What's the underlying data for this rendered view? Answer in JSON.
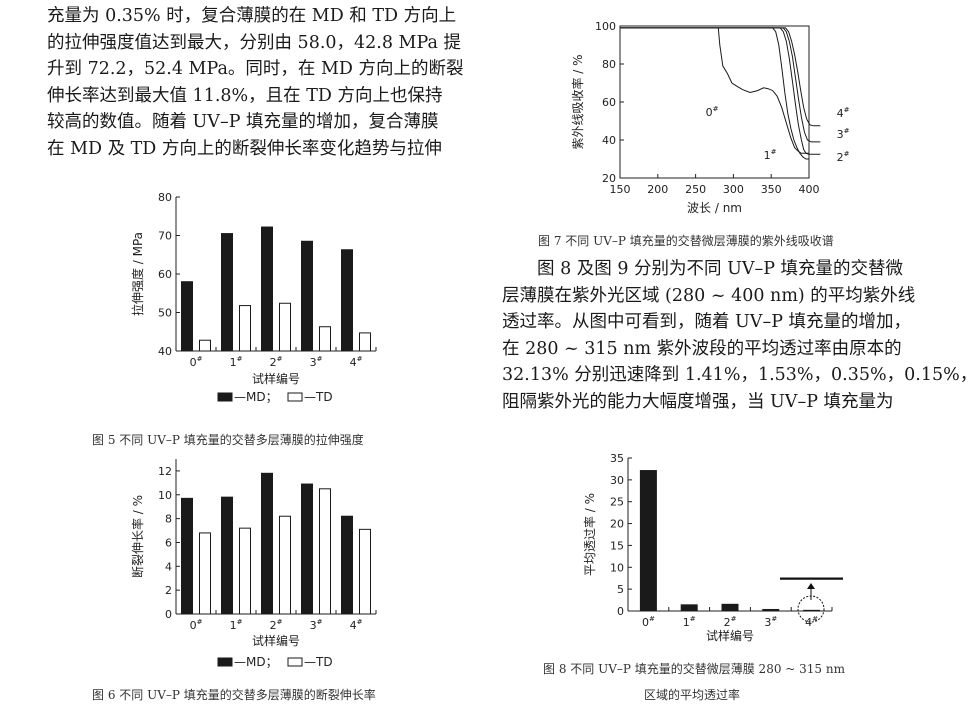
{
  "left_paragraph": [
    "充量为 0.35% 时，复合薄膜的在 MD 和 TD 方向上",
    "的拉伸强度值达到最大，分别由 58.0，42.8 MPa 提",
    "升到 72.2，52.4 MPa。同时，在 MD 方向上的断裂",
    "伸长率达到最大值 11.8%，且在 TD 方向上也保持",
    "较高的数值。随着 UV–P 填充量的增加，复合薄膜",
    "在 MD 及 TD 方向上的断裂伸长率变化趋势与拉伸"
  ],
  "right_paragraph": [
    "图 8 及图 9 分别为不同 UV–P 填充量的交替微",
    "层薄膜在紫外光区域 (280 ~ 400  nm) 的平均紫外线",
    "透过率。从图中可看到，随着 UV–P 填充量的增加，",
    "在 280 ~ 315  nm 紫外波段的平均透过率由原本的",
    "32.13% 分别迅速降到 1.41%，1.53%，0.35%，0.15%，",
    "阻隔紫外光的能力大幅度增强，当 UV–P 填充量为"
  ],
  "figures": {
    "fig5": {
      "caption": "图 5   不同 UV–P 填充量的交替多层薄膜的拉伸强度",
      "legend_md": "—MD；",
      "legend_td": "—TD"
    },
    "fig6": {
      "caption": "图 6   不同 UV–P 填充量的交替多层薄膜的断裂伸长率",
      "legend_md": "—MD；",
      "legend_td": "—TD"
    },
    "fig7": {
      "caption": "图 7   不同 UV–P 填充量的交替微层薄膜的紫外线吸收谱"
    },
    "fig8": {
      "caption_line1": "图 8   不同 UV–P 填充量的交替微层薄膜 280 ~ 315  nm",
      "caption_line2": "区域的平均透过率"
    }
  },
  "chart_data": [
    {
      "id": "fig5",
      "type": "bar",
      "title": "",
      "xlabel": "试样编号",
      "ylabel": "拉伸强度 / MPa",
      "categories": [
        "0#",
        "1#",
        "2#",
        "3#",
        "4#"
      ],
      "ylim": [
        40,
        80
      ],
      "yticks": [
        40,
        50,
        60,
        70,
        80
      ],
      "series": [
        {
          "name": "MD",
          "color": "#1a1a1a",
          "values": [
            58.0,
            70.5,
            72.2,
            68.5,
            66.3
          ]
        },
        {
          "name": "TD",
          "color": "#ffffff",
          "values": [
            42.8,
            51.8,
            52.4,
            46.3,
            44.7
          ]
        }
      ],
      "legend": "bottom"
    },
    {
      "id": "fig6",
      "type": "bar",
      "title": "",
      "xlabel": "试样编号",
      "ylabel": "断裂伸长率 / %",
      "categories": [
        "0#",
        "1#",
        "2#",
        "3#",
        "4#"
      ],
      "ylim": [
        0,
        13
      ],
      "yticks": [
        0,
        2,
        4,
        6,
        8,
        10,
        12
      ],
      "series": [
        {
          "name": "MD",
          "color": "#1a1a1a",
          "values": [
            9.7,
            9.8,
            11.8,
            10.9,
            8.2
          ]
        },
        {
          "name": "TD",
          "color": "#ffffff",
          "values": [
            6.8,
            7.2,
            8.2,
            10.5,
            7.1
          ]
        }
      ],
      "legend": "bottom"
    },
    {
      "id": "fig7",
      "type": "line",
      "title": "",
      "xlabel": "波长 / nm",
      "ylabel": "紫外线吸收率 / %",
      "xlim": [
        150,
        400
      ],
      "ylim": [
        20,
        100
      ],
      "xticks": [
        150,
        200,
        250,
        300,
        350,
        400
      ],
      "yticks": [
        20,
        40,
        60,
        80,
        100
      ],
      "series": [
        {
          "name": "0#",
          "points": [
            [
              280,
              99
            ],
            [
              282,
              90
            ],
            [
              286,
              79
            ],
            [
              292,
              75
            ],
            [
              298,
              70
            ],
            [
              304,
              68.5
            ],
            [
              312,
              66.5
            ],
            [
              322,
              65
            ],
            [
              332,
              66
            ],
            [
              340,
              67.5
            ],
            [
              346,
              67
            ],
            [
              352,
              66
            ],
            [
              358,
              63
            ],
            [
              364,
              57
            ],
            [
              370,
              49
            ],
            [
              376,
              41
            ],
            [
              381,
              36
            ],
            [
              386,
              34
            ],
            [
              390,
              33
            ],
            [
              395,
              33
            ],
            [
              400,
              33
            ]
          ]
        },
        {
          "name": "1#",
          "points": [
            [
              150,
              99
            ],
            [
              352,
              99
            ],
            [
              356,
              97
            ],
            [
              360,
              90
            ],
            [
              364,
              78
            ],
            [
              368,
              65
            ],
            [
              372,
              54
            ],
            [
              376,
              46
            ],
            [
              380,
              40
            ],
            [
              384,
              36
            ],
            [
              388,
              33
            ],
            [
              392,
              31
            ],
            [
              396,
              30
            ],
            [
              400,
              30
            ]
          ]
        },
        {
          "name": "2#",
          "points": [
            [
              150,
              99
            ],
            [
              362,
              99
            ],
            [
              366,
              97
            ],
            [
              370,
              92
            ],
            [
              374,
              83
            ],
            [
              378,
              71
            ],
            [
              382,
              59
            ],
            [
              386,
              48
            ],
            [
              390,
              40
            ],
            [
              393,
              35
            ],
            [
              396,
              33
            ],
            [
              400,
              32.5
            ],
            [
              415,
              32.5
            ]
          ]
        },
        {
          "name": "3#",
          "points": [
            [
              150,
              99
            ],
            [
              366,
              99
            ],
            [
              370,
              97
            ],
            [
              374,
              92
            ],
            [
              378,
              84
            ],
            [
              382,
              73
            ],
            [
              386,
              62
            ],
            [
              390,
              52
            ],
            [
              394,
              44
            ],
            [
              398,
              40
            ],
            [
              403,
              39
            ],
            [
              415,
              39
            ]
          ]
        },
        {
          "name": "4#",
          "points": [
            [
              150,
              99
            ],
            [
              369,
              99
            ],
            [
              373,
              97
            ],
            [
              377,
              92
            ],
            [
              381,
              85
            ],
            [
              385,
              76
            ],
            [
              389,
              66
            ],
            [
              393,
              57
            ],
            [
              397,
              51
            ],
            [
              401,
              48
            ],
            [
              406,
              47.5
            ],
            [
              415,
              47.5
            ]
          ]
        }
      ],
      "annotations": [
        "0#",
        "1#",
        "2#",
        "3#",
        "4#"
      ]
    },
    {
      "id": "fig8",
      "type": "bar",
      "title": "",
      "xlabel": "试样编号",
      "ylabel": "平均透过率 / %",
      "categories": [
        "0#",
        "1#",
        "2#",
        "3#",
        "4#"
      ],
      "ylim": [
        0,
        35
      ],
      "yticks": [
        0,
        5,
        10,
        15,
        20,
        25,
        30,
        35
      ],
      "series": [
        {
          "name": "",
          "color": "#1a1a1a",
          "values": [
            32.13,
            1.41,
            1.53,
            0.35,
            0.15
          ]
        }
      ]
    }
  ]
}
